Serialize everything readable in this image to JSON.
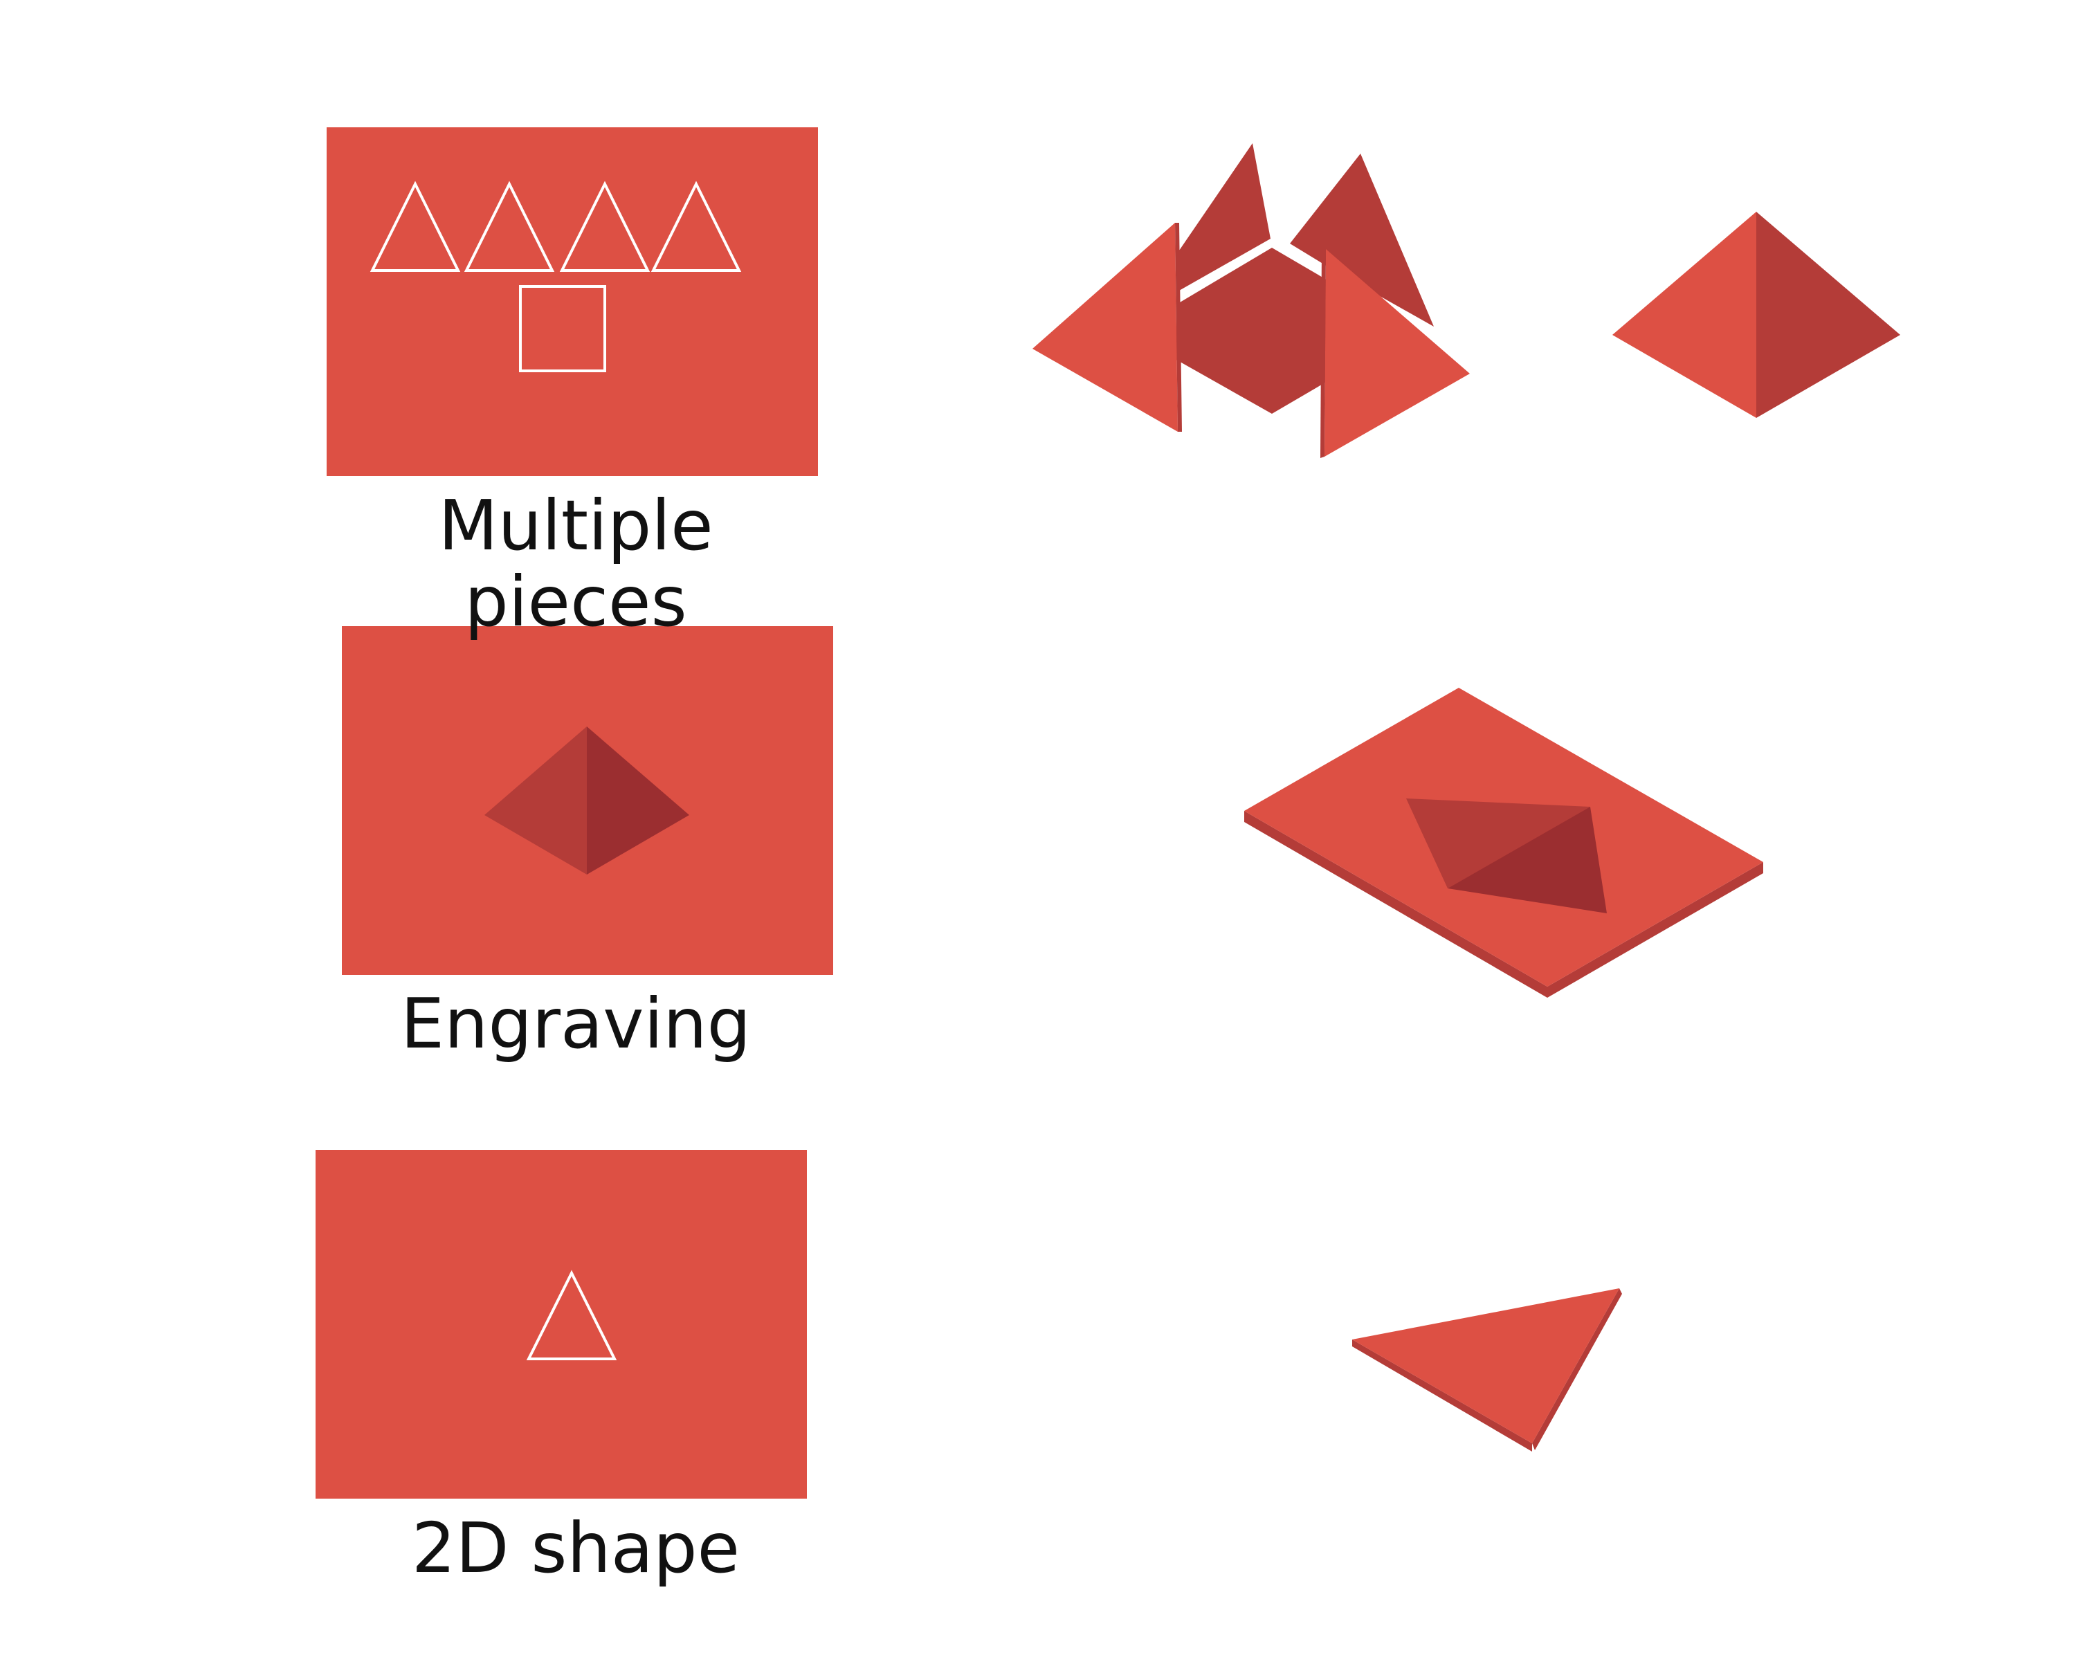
{
  "rows": [
    {
      "label": "Multiple pieces"
    },
    {
      "label": "Engraving"
    },
    {
      "label": "2D shape"
    }
  ],
  "colors": {
    "face": "#dd5044",
    "shade": "#b43c38",
    "dark": "#9b2e30",
    "outline": "#ffffff",
    "background": "#ffffff"
  }
}
